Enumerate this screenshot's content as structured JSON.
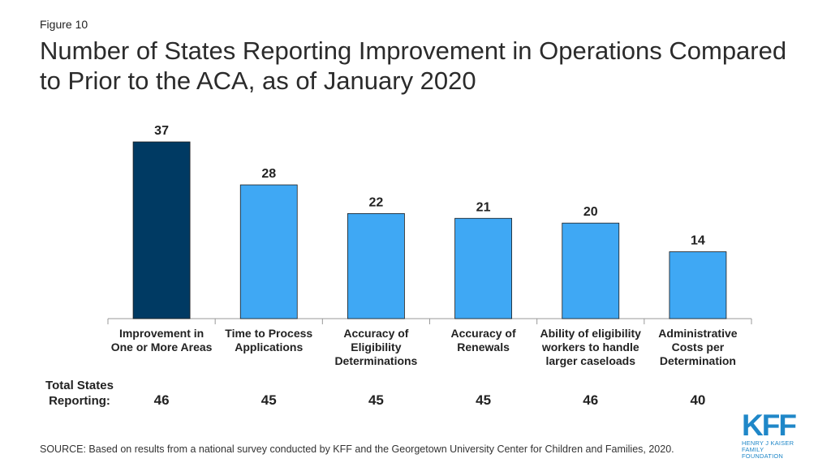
{
  "figure_label": "Figure 10",
  "chart_data": {
    "type": "bar",
    "title": "Number of States Reporting Improvement in Operations Compared to Prior to the ACA, as of January 2020",
    "categories": [
      "Improvement in One or More Areas",
      "Time to Process Applications",
      "Accuracy of Eligibility Determinations",
      "Accuracy of Renewals",
      "Ability of eligibility workers to handle larger caseloads",
      "Administrative Costs per Determination"
    ],
    "values": [
      37,
      28,
      22,
      21,
      20,
      14
    ],
    "data_labels": [
      "37",
      "28",
      "22",
      "21",
      "20",
      "14"
    ],
    "colors": [
      "#003a63",
      "#3fa8f4",
      "#3fa8f4",
      "#3fa8f4",
      "#3fa8f4",
      "#3fa8f4"
    ],
    "ylim": [
      0,
      37
    ],
    "grid": false
  },
  "totals": {
    "heading": "Total States Reporting:",
    "values": [
      "46",
      "45",
      "45",
      "45",
      "46",
      "40"
    ]
  },
  "source": "SOURCE: Based on results from a national survey conducted by KFF and the Georgetown University Center for Children and Families, 2020.",
  "logo": {
    "mark": "KFF",
    "line1": "HENRY J KAISER",
    "line2": "FAMILY FOUNDATION"
  },
  "colors": {
    "highlight": "#003a63",
    "bar": "#3fa8f4",
    "logo": "#1f87c8"
  }
}
